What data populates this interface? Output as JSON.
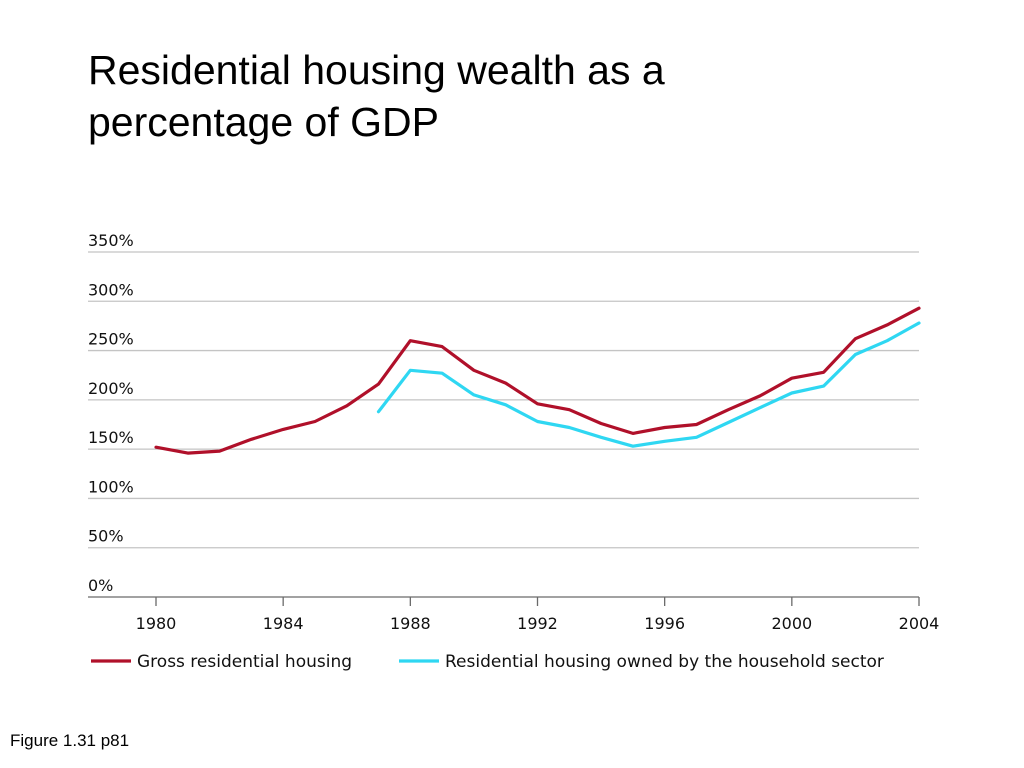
{
  "slide": {
    "title": "Residential housing wealth as a percentage of GDP",
    "caption": "Figure 1.31 p81"
  },
  "chart_data": {
    "type": "line",
    "title": "",
    "xlabel": "",
    "ylabel": "",
    "xlim": [
      1980,
      2004
    ],
    "ylim": [
      0,
      350
    ],
    "x_ticks": [
      1980,
      1984,
      1988,
      1992,
      1996,
      2000,
      2004
    ],
    "x_tick_labels": [
      "1980",
      "1984",
      "1988",
      "1992",
      "1996",
      "2000",
      "2004"
    ],
    "y_ticks": [
      0,
      50,
      100,
      150,
      200,
      250,
      300,
      350
    ],
    "y_tick_labels": [
      "0%",
      "50%",
      "100%",
      "150%",
      "200%",
      "250%",
      "300%",
      "350%"
    ],
    "grid": true,
    "legend_position": "bottom",
    "series": [
      {
        "name": "Gross residential housing",
        "color": "#b0102a",
        "x": [
          1980,
          1981,
          1982,
          1983,
          1984,
          1985,
          1986,
          1987,
          1988,
          1989,
          1990,
          1991,
          1992,
          1993,
          1994,
          1995,
          1996,
          1997,
          1998,
          1999,
          2000,
          2001,
          2002,
          2003,
          2004
        ],
        "values": [
          152,
          146,
          148,
          160,
          170,
          178,
          194,
          216,
          260,
          254,
          230,
          217,
          196,
          190,
          176,
          166,
          172,
          175,
          190,
          204,
          222,
          228,
          262,
          276,
          293
        ]
      },
      {
        "name": "Residential housing owned by the household sector",
        "color": "#2fd7f2",
        "x": [
          1987,
          1988,
          1989,
          1990,
          1991,
          1992,
          1993,
          1994,
          1995,
          1996,
          1997,
          1998,
          1999,
          2000,
          2001,
          2002,
          2003,
          2004
        ],
        "values": [
          188,
          230,
          227,
          205,
          195,
          178,
          172,
          162,
          153,
          158,
          162,
          177,
          192,
          207,
          214,
          246,
          260,
          278
        ]
      }
    ]
  }
}
